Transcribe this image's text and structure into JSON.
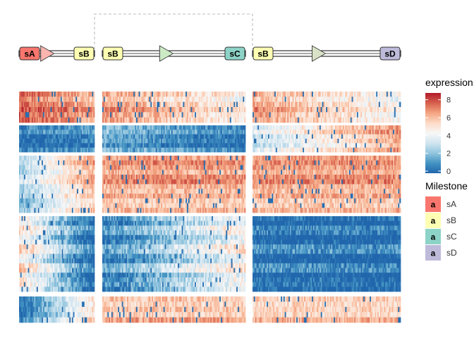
{
  "chart_data": {
    "type": "heatmap",
    "colorbar": {
      "title": "expression",
      "range": [
        0,
        9
      ],
      "ticks": [
        0,
        2,
        4,
        6,
        8
      ],
      "tick_labels": [
        "0",
        "2",
        "4",
        "6",
        "8"
      ],
      "colors": [
        "#2166ac",
        "#4393c3",
        "#92c5de",
        "#d1e5f0",
        "#f7f7f7",
        "#fddbc7",
        "#f4a582",
        "#d6604d",
        "#b2182b"
      ]
    },
    "milestone_legend": {
      "title": "Milestone",
      "key_symbol": "a",
      "items": [
        {
          "label": "sA",
          "color": "#F8766D"
        },
        {
          "label": "sB",
          "color": "#FFFFB3"
        },
        {
          "label": "sC",
          "color": "#8DD3C7"
        },
        {
          "label": "sD",
          "color": "#BEBADA"
        }
      ]
    },
    "trajectory_segments": [
      {
        "from": "sA",
        "to": "sB",
        "arrow_color": "#FBB4AE",
        "start_color": "#F8766D",
        "end_color": "#FFFFB3"
      },
      {
        "from": "sB",
        "to": "sC",
        "arrow_color": "#CCEBC5",
        "start_color": "#FFFFB3",
        "end_color": "#8DD3C7"
      },
      {
        "from": "sB",
        "to": "sD",
        "arrow_color": "#D9E2C6",
        "start_color": "#FFFFB3",
        "end_color": "#BEBADA"
      }
    ],
    "gene_modules": [
      {
        "genes": 6,
        "panel_means": [
          [
            7.6,
            6.2
          ],
          [
            6.6,
            4.6
          ],
          [
            6.4,
            4.2
          ]
        ],
        "noise": 1.0
      },
      {
        "genes": 6,
        "panel_means": [
          [
            0.3,
            0.7
          ],
          [
            1.6,
            0.3
          ],
          [
            3.2,
            6.6
          ]
        ],
        "noise": 0.9
      },
      {
        "genes": 12,
        "panel_means": [
          [
            2.6,
            6.4
          ],
          [
            6.6,
            6.6
          ],
          [
            6.6,
            6.6
          ]
        ],
        "noise": 0.9
      },
      {
        "genes": 16,
        "panel_means": [
          [
            5.4,
            0.3
          ],
          [
            0.9,
            4.8
          ],
          [
            0.5,
            0.3
          ]
        ],
        "noise": 1.1
      },
      {
        "genes": 5,
        "panel_means": [
          [
            0.4,
            5.6
          ],
          [
            6.2,
            6.2
          ],
          [
            6.0,
            6.0
          ]
        ],
        "noise": 0.9
      }
    ]
  }
}
